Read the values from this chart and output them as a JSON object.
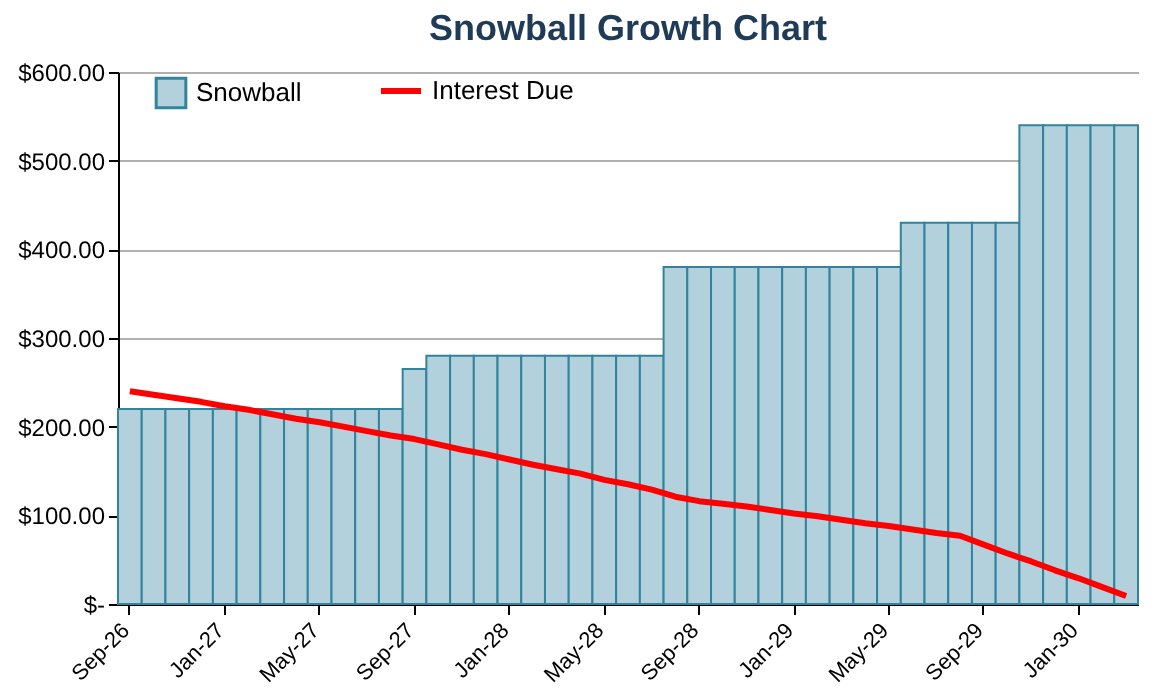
{
  "chart_data": {
    "type": "bar",
    "title": "Snowball Growth Chart",
    "categories": [
      "Sep-26",
      null,
      null,
      null,
      "Jan-27",
      null,
      null,
      null,
      "May-27",
      null,
      null,
      null,
      "Sep-27",
      null,
      null,
      null,
      "Jan-28",
      null,
      null,
      null,
      "May-28",
      null,
      null,
      null,
      "Sep-28",
      null,
      null,
      null,
      "Jan-29",
      null,
      null,
      null,
      "May-29",
      null,
      null,
      null,
      "Sep-29",
      null,
      null,
      null,
      "Jan-30",
      null,
      null
    ],
    "series": [
      {
        "name": "Snowball",
        "color": "#b3d1dc",
        "values": [
          220,
          220,
          220,
          220,
          220,
          220,
          220,
          220,
          220,
          220,
          220,
          220,
          265,
          280,
          280,
          280,
          280,
          280,
          280,
          280,
          280,
          280,
          280,
          380,
          380,
          380,
          380,
          380,
          380,
          380,
          380,
          380,
          380,
          430,
          430,
          430,
          430,
          430,
          540,
          540,
          540,
          540,
          540
        ]
      },
      {
        "name": "Interest Due",
        "type": "line",
        "color": "#ff0000",
        "values": [
          240,
          236,
          232,
          228,
          223,
          219,
          214,
          209,
          205,
          200,
          195,
          190,
          186,
          180,
          174,
          169,
          163,
          157,
          152,
          147,
          140,
          135,
          129,
          121,
          116,
          113,
          110,
          106,
          102,
          99,
          95,
          91,
          88,
          84,
          80,
          77,
          67,
          57,
          48,
          38,
          29,
          19,
          9
        ]
      }
    ],
    "ylim": [
      0,
      600
    ],
    "yticks": [
      {
        "value": 0,
        "label": "$-"
      },
      {
        "value": 100,
        "label": "$100.00"
      },
      {
        "value": 200,
        "label": "$200.00"
      },
      {
        "value": 300,
        "label": "$300.00"
      },
      {
        "value": 400,
        "label": "$400.00"
      },
      {
        "value": 500,
        "label": "$500.00"
      },
      {
        "value": 600,
        "label": "$600.00"
      }
    ],
    "grid": "y",
    "legend": "top left",
    "marker": "none",
    "line_style": "solid"
  }
}
